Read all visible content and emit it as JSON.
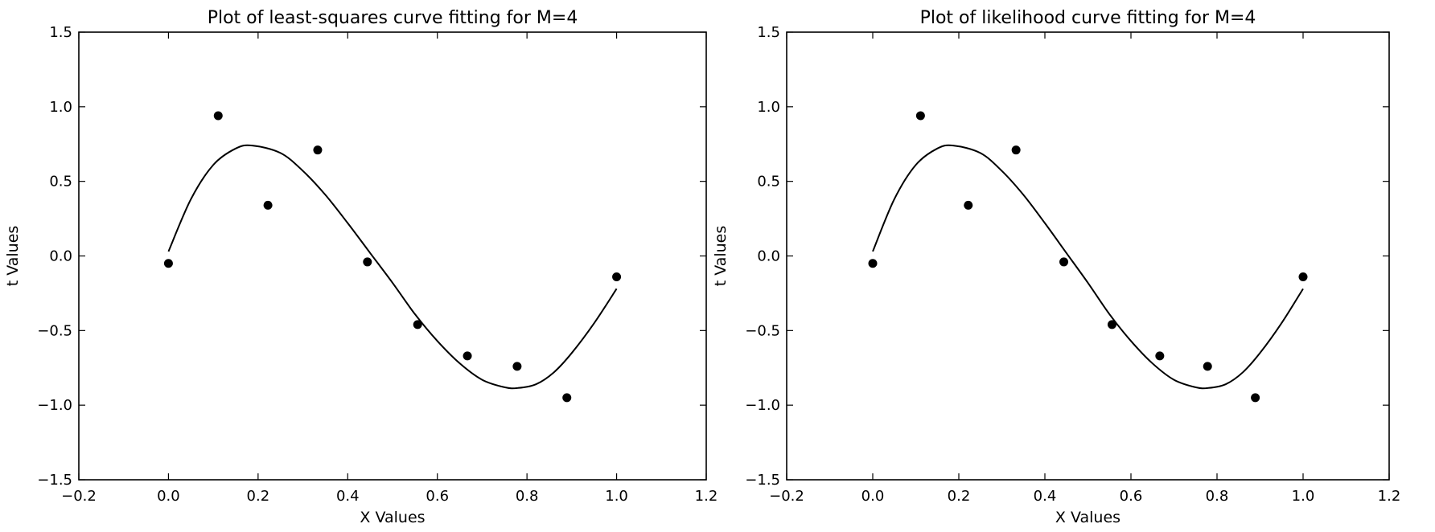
{
  "chart_data": [
    {
      "type": "scatter",
      "title": "Plot of least-squares curve fitting for M=4",
      "xlabel": "X Values",
      "ylabel": "t Values",
      "xlim": [
        -0.2,
        1.2
      ],
      "ylim": [
        -1.5,
        1.5
      ],
      "xticks": [
        -0.2,
        0.0,
        0.2,
        0.4,
        0.6,
        0.8,
        1.0,
        1.2
      ],
      "xtick_labels": [
        "−0.2",
        "0.0",
        "0.2",
        "0.4",
        "0.6",
        "0.8",
        "1.0",
        "1.2"
      ],
      "yticks": [
        1.5,
        1.0,
        0.5,
        0.0,
        -0.5,
        -1.0,
        -1.5
      ],
      "ytick_labels": [
        "1.5",
        "1.0",
        "0.5",
        "0.0",
        "−0.5",
        "−1.0",
        "−1.5"
      ],
      "grid": false,
      "points": {
        "x": [
          0.0,
          0.111,
          0.222,
          0.333,
          0.444,
          0.556,
          0.667,
          0.778,
          0.889,
          1.0
        ],
        "y": [
          -0.05,
          0.94,
          0.34,
          0.71,
          -0.04,
          -0.46,
          -0.67,
          -0.74,
          -0.95,
          -0.14
        ]
      },
      "curve": {
        "x": [
          0.0,
          0.05,
          0.1,
          0.15,
          0.187,
          0.25,
          0.3,
          0.35,
          0.4,
          0.45,
          0.5,
          0.55,
          0.6,
          0.65,
          0.7,
          0.75,
          0.78,
          0.82,
          0.86,
          0.9,
          0.95,
          1.0
        ],
        "y": [
          0.03,
          0.38,
          0.61,
          0.72,
          0.74,
          0.69,
          0.57,
          0.41,
          0.22,
          0.02,
          -0.18,
          -0.39,
          -0.57,
          -0.72,
          -0.83,
          -0.88,
          -0.885,
          -0.86,
          -0.78,
          -0.65,
          -0.45,
          -0.22
        ]
      }
    },
    {
      "type": "scatter",
      "title": "Plot of likelihood curve fitting for M=4",
      "xlabel": "X Values",
      "ylabel": "t Values",
      "xlim": [
        -0.2,
        1.2
      ],
      "ylim": [
        -1.5,
        1.5
      ],
      "xticks": [
        -0.2,
        0.0,
        0.2,
        0.4,
        0.6,
        0.8,
        1.0,
        1.2
      ],
      "xtick_labels": [
        "−0.2",
        "0.0",
        "0.2",
        "0.4",
        "0.6",
        "0.8",
        "1.0",
        "1.2"
      ],
      "yticks": [
        1.5,
        1.0,
        0.5,
        0.0,
        -0.5,
        -1.0,
        -1.5
      ],
      "ytick_labels": [
        "1.5",
        "1.0",
        "0.5",
        "0.0",
        "−0.5",
        "−1.0",
        "−1.5"
      ],
      "grid": false,
      "points": {
        "x": [
          0.0,
          0.111,
          0.222,
          0.333,
          0.444,
          0.556,
          0.667,
          0.778,
          0.889,
          1.0
        ],
        "y": [
          -0.05,
          0.94,
          0.34,
          0.71,
          -0.04,
          -0.46,
          -0.67,
          -0.74,
          -0.95,
          -0.14
        ]
      },
      "curve": {
        "x": [
          0.0,
          0.05,
          0.1,
          0.15,
          0.187,
          0.25,
          0.3,
          0.35,
          0.4,
          0.45,
          0.5,
          0.55,
          0.6,
          0.65,
          0.7,
          0.75,
          0.78,
          0.82,
          0.86,
          0.9,
          0.95,
          1.0
        ],
        "y": [
          0.03,
          0.38,
          0.61,
          0.72,
          0.74,
          0.69,
          0.57,
          0.41,
          0.22,
          0.02,
          -0.18,
          -0.39,
          -0.57,
          -0.72,
          -0.83,
          -0.88,
          -0.885,
          -0.86,
          -0.78,
          -0.65,
          -0.45,
          -0.22
        ]
      }
    }
  ]
}
